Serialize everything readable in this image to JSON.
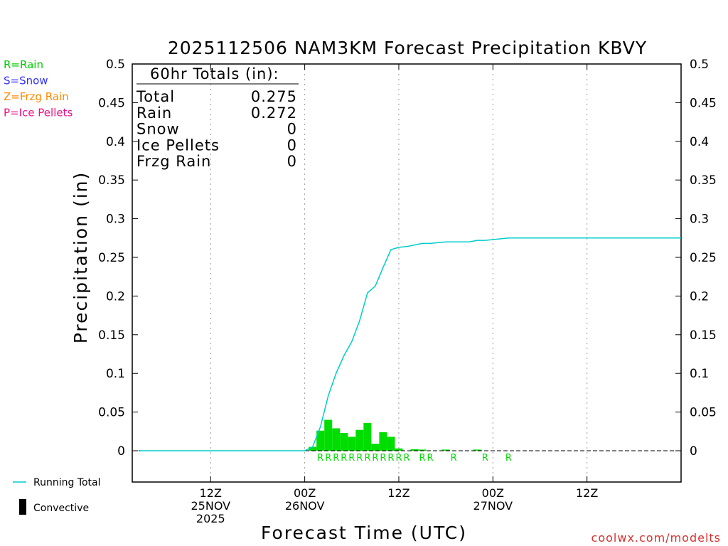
{
  "page": {
    "title": "2025112506 NAM3KM Forecast Precipitation KBVY",
    "watermark": "coolwx.com/modelts"
  },
  "type_legend": [
    {
      "label": "R=Rain",
      "color": "#00cc00"
    },
    {
      "label": "S=Snow",
      "color": "#3333ff"
    },
    {
      "label": "Z=Frzg Rain",
      "color": "#ff8800"
    },
    {
      "label": "P=Ice Pellets",
      "color": "#ee1188"
    }
  ],
  "series_legend": [
    {
      "label": "Running Total",
      "color": "#00cccc",
      "shape": "line"
    },
    {
      "label": "Convective",
      "color": "#000000",
      "shape": "bar"
    }
  ],
  "totals_box": {
    "heading": "60hr Totals (in):",
    "rows": [
      {
        "label": "Total",
        "value": "0.275"
      },
      {
        "label": "Rain",
        "value": "0.272"
      },
      {
        "label": "Snow",
        "value": "0"
      },
      {
        "label": "Ice Pellets",
        "value": "0"
      },
      {
        "label": "Frzg Rain",
        "value": "0"
      }
    ]
  },
  "chart_data": {
    "type": "bar",
    "title": "2025112506 NAM3KM Forecast Precipitation KBVY",
    "xlabel": "Forecast Time (UTC)",
    "ylabel": "Precipitation (in)",
    "ylim": [
      0,
      0.5
    ],
    "yticks": [
      0,
      0.05,
      0.1,
      0.15,
      0.2,
      0.25,
      0.3,
      0.35,
      0.4,
      0.45,
      0.5
    ],
    "ytick_labels": [
      "0",
      "0.05",
      "0.1",
      "0.15",
      "0.2",
      "0.25",
      "0.3",
      "0.35",
      "0.4",
      "0.45",
      "0.5"
    ],
    "xlim": [
      -4,
      66
    ],
    "xticks": [
      {
        "x": 6,
        "lines": [
          "12Z",
          "25NOV",
          "2025"
        ]
      },
      {
        "x": 18,
        "lines": [
          "00Z",
          "26NOV"
        ]
      },
      {
        "x": 30,
        "lines": [
          "12Z"
        ]
      },
      {
        "x": 42,
        "lines": [
          "00Z",
          "27NOV"
        ]
      },
      {
        "x": 54,
        "lines": [
          "12Z"
        ]
      }
    ],
    "grid": "vertical dotted",
    "hourly_precip": {
      "name": "Rain",
      "color": "#00dd00",
      "x": [
        19,
        20,
        21,
        22,
        23,
        24,
        25,
        26,
        27,
        28,
        29,
        30,
        31,
        32,
        33,
        34,
        35,
        36,
        37,
        38,
        39,
        40,
        41,
        42,
        43,
        44,
        45,
        46
      ],
      "values": [
        0.005,
        0.026,
        0.04,
        0.029,
        0.023,
        0.018,
        0.027,
        0.036,
        0.009,
        0.024,
        0.018,
        0.003,
        0,
        0.002,
        0.0015,
        0,
        0,
        0.0015,
        0,
        0,
        0,
        0.0015,
        0,
        0,
        0,
        0,
        0,
        0
      ]
    },
    "precip_type_labels": [
      {
        "x": 20,
        "label": "R"
      },
      {
        "x": 21,
        "label": "R"
      },
      {
        "x": 22,
        "label": "R"
      },
      {
        "x": 23,
        "label": "R"
      },
      {
        "x": 24,
        "label": "R"
      },
      {
        "x": 25,
        "label": "R"
      },
      {
        "x": 26,
        "label": "R"
      },
      {
        "x": 27,
        "label": "R"
      },
      {
        "x": 28,
        "label": "R"
      },
      {
        "x": 29,
        "label": "R"
      },
      {
        "x": 30,
        "label": "R"
      },
      {
        "x": 31,
        "label": "R"
      },
      {
        "x": 33,
        "label": "R"
      },
      {
        "x": 34,
        "label": "R"
      },
      {
        "x": 37,
        "label": "R"
      },
      {
        "x": 41,
        "label": "R"
      },
      {
        "x": 44,
        "label": "R"
      }
    ],
    "running_total": {
      "name": "Running Total",
      "color": "#00cccc",
      "x": [
        -3,
        18,
        19,
        20,
        21,
        22,
        23,
        24,
        25,
        26,
        27,
        28,
        29,
        30,
        31,
        32,
        33,
        34,
        35,
        36,
        37,
        38,
        39,
        40,
        41,
        42,
        43,
        44,
        45,
        46,
        50,
        56,
        60,
        66
      ],
      "y": [
        0,
        0,
        0.005,
        0.031,
        0.071,
        0.1,
        0.123,
        0.141,
        0.168,
        0.204,
        0.213,
        0.237,
        0.26,
        0.263,
        0.264,
        0.266,
        0.268,
        0.268,
        0.269,
        0.27,
        0.27,
        0.27,
        0.27,
        0.272,
        0.272,
        0.273,
        0.274,
        0.275,
        0.275,
        0.275,
        0.275,
        0.275,
        0.275,
        0.275
      ]
    }
  }
}
